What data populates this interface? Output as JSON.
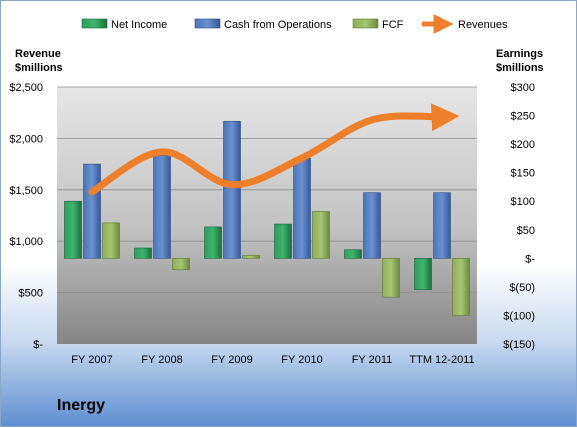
{
  "company": "Inergy",
  "chart_data": {
    "type": "bar",
    "categories": [
      "FY 2007",
      "FY 2008",
      "FY 2009",
      "FY 2010",
      "FY 2011",
      "TTM 12-2011"
    ],
    "left_axis": {
      "title_line1": "Revenue",
      "title_line2": "$millions",
      "ticks": [
        "$-",
        "$500",
        "$1,000",
        "$1,500",
        "$2,000",
        "$2,500"
      ],
      "ylim": [
        0,
        2500
      ]
    },
    "right_axis": {
      "title_line1": "Earnings",
      "title_line2": "$millions",
      "ticks": [
        "$(150)",
        "$(100)",
        "$(50)",
        "$-",
        "$50",
        "$100",
        "$150",
        "$200",
        "$250",
        "$300"
      ],
      "ylim": [
        -150,
        300
      ]
    },
    "series": [
      {
        "name": "Net Income",
        "type": "bar",
        "axis": "right",
        "color": "#1f8a4c",
        "values": [
          100,
          18,
          55,
          60,
          15,
          -55
        ]
      },
      {
        "name": "Cash from Operations",
        "type": "bar",
        "axis": "right",
        "color": "#4a74b8",
        "values": [
          165,
          180,
          240,
          175,
          115,
          115
        ]
      },
      {
        "name": "FCF",
        "type": "bar",
        "axis": "right",
        "color": "#8cac55",
        "values": [
          62,
          -20,
          5,
          82,
          -68,
          -100
        ]
      },
      {
        "name": "Revenues",
        "type": "line",
        "axis": "left",
        "color": "#f07f2a",
        "values": [
          1480,
          1870,
          1550,
          1810,
          2180,
          2210
        ]
      }
    ],
    "grid": true,
    "legend": "top"
  }
}
